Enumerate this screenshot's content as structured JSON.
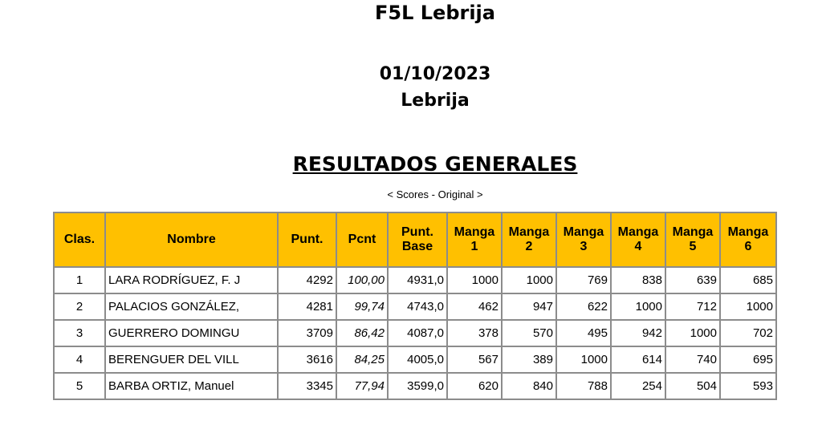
{
  "title": "F5L Lebrija",
  "date": "01/10/2023",
  "place": "Lebrija",
  "section": "RESULTADOS GENERALES",
  "subtitle": "< Scores - Original >",
  "table": {
    "headers": [
      "Clas.",
      "Nombre",
      "Punt.",
      "Pcnt",
      "Punt. Base",
      "Manga 1",
      "Manga 2",
      "Manga 3",
      "Manga 4",
      "Manga 5",
      "Manga 6"
    ],
    "header_color": "#ffc000",
    "rows": [
      [
        "1",
        "LARA RODRÍGUEZ, F. J",
        "4292",
        "100,00",
        "4931,0",
        "1000",
        "1000",
        "769",
        "838",
        "639",
        "685"
      ],
      [
        "2",
        "PALACIOS GONZÁLEZ,",
        "4281",
        "99,74",
        "4743,0",
        "462",
        "947",
        "622",
        "1000",
        "712",
        "1000"
      ],
      [
        "3",
        "GUERRERO DOMINGU",
        "3709",
        "86,42",
        "4087,0",
        "378",
        "570",
        "495",
        "942",
        "1000",
        "702"
      ],
      [
        "4",
        "BERENGUER DEL VILL",
        "3616",
        "84,25",
        "4005,0",
        "567",
        "389",
        "1000",
        "614",
        "740",
        "695"
      ],
      [
        "5",
        "BARBA ORTIZ, Manuel",
        "3345",
        "77,94",
        "3599,0",
        "620",
        "840",
        "788",
        "254",
        "504",
        "593"
      ]
    ]
  }
}
